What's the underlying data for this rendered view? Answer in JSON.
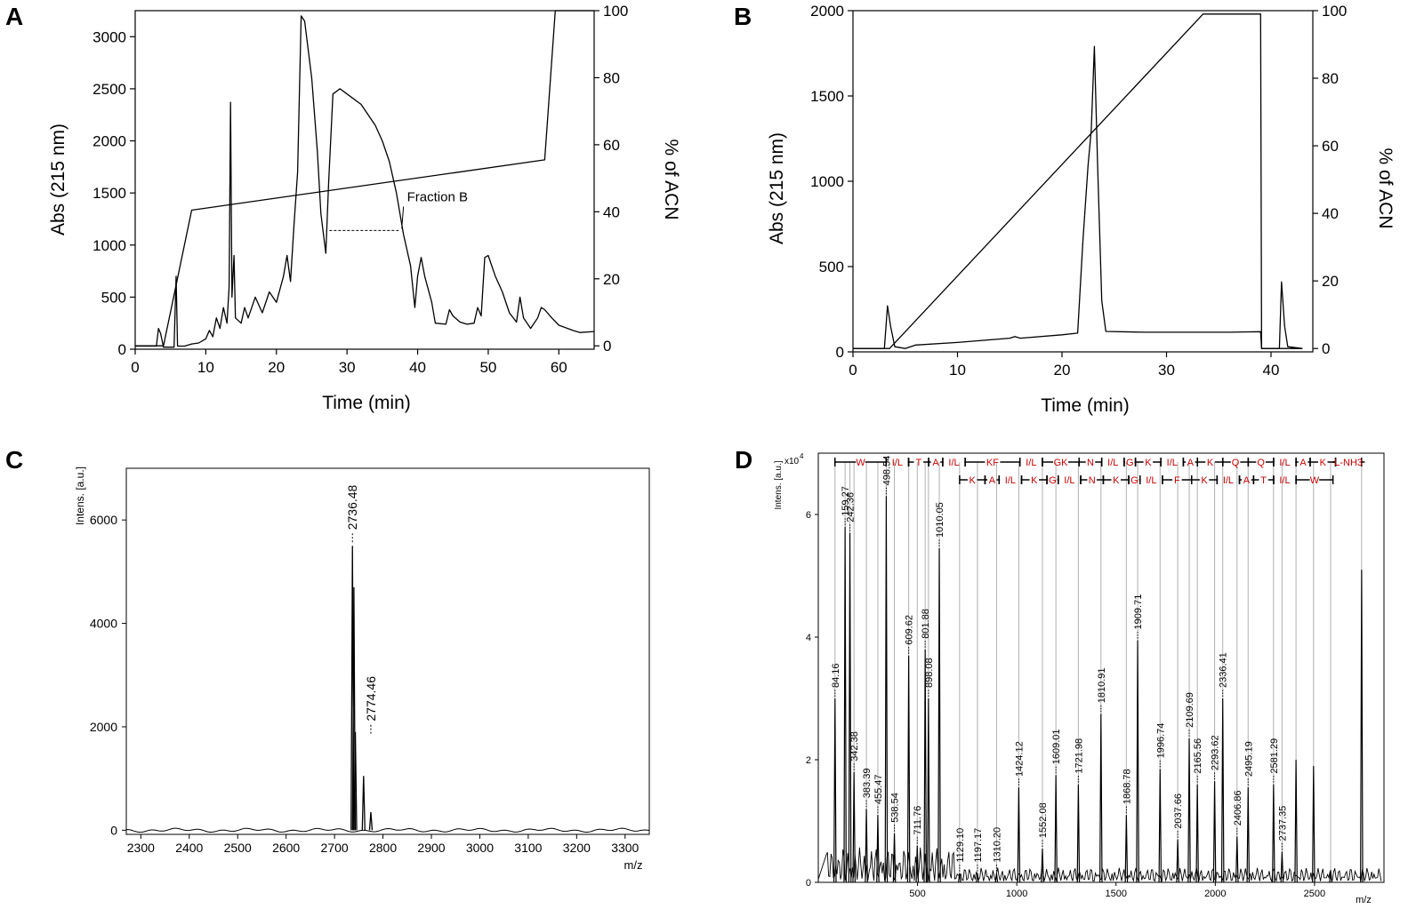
{
  "chart_data": [
    {
      "panel": "A",
      "type": "line",
      "xlabel": "Time (min)",
      "ylabel": "Abs (215 nm)",
      "y2label": "% of ACN",
      "xlim": [
        0,
        65
      ],
      "ylim": [
        0,
        3250
      ],
      "y2lim": [
        -1,
        100
      ],
      "xticks": [
        0,
        10,
        20,
        30,
        40,
        50,
        60
      ],
      "yticks": [
        0,
        500,
        1000,
        1500,
        2000,
        2500,
        3000
      ],
      "y2ticks": [
        0,
        20,
        40,
        60,
        80,
        100
      ],
      "annotation": {
        "text": "Fraction B",
        "x1": 27.5,
        "x2": 37.5,
        "y": 1140,
        "label_x": 38.5,
        "label_y": 1420
      },
      "series": [
        {
          "name": "Abs (215 nm)",
          "axis": "left",
          "points": [
            [
              0,
              30
            ],
            [
              3,
              30
            ],
            [
              3.3,
              200
            ],
            [
              3.6,
              150
            ],
            [
              4,
              20
            ],
            [
              5.5,
              20
            ],
            [
              5.8,
              700
            ],
            [
              6,
              30
            ],
            [
              7,
              30
            ],
            [
              8,
              50
            ],
            [
              9,
              60
            ],
            [
              10,
              100
            ],
            [
              10.5,
              180
            ],
            [
              11,
              120
            ],
            [
              11.5,
              300
            ],
            [
              12,
              200
            ],
            [
              12.5,
              400
            ],
            [
              13,
              250
            ],
            [
              13.3,
              600
            ],
            [
              13.5,
              2370
            ],
            [
              13.7,
              500
            ],
            [
              14,
              900
            ],
            [
              14.2,
              300
            ],
            [
              15,
              250
            ],
            [
              15.5,
              400
            ],
            [
              16,
              300
            ],
            [
              17,
              500
            ],
            [
              18,
              350
            ],
            [
              19,
              550
            ],
            [
              20,
              450
            ],
            [
              21,
              700
            ],
            [
              21.5,
              900
            ],
            [
              22,
              650
            ],
            [
              22.5,
              1200
            ],
            [
              23,
              1700
            ],
            [
              23.5,
              3200
            ],
            [
              24,
              3150
            ],
            [
              25,
              2600
            ],
            [
              25.8,
              1900
            ],
            [
              26.3,
              1300
            ],
            [
              27,
              920
            ],
            [
              27.4,
              1600
            ],
            [
              28,
              2450
            ],
            [
              29,
              2500
            ],
            [
              30,
              2450
            ],
            [
              32,
              2350
            ],
            [
              34,
              2150
            ],
            [
              35,
              2000
            ],
            [
              36,
              1800
            ],
            [
              37,
              1500
            ],
            [
              38,
              1100
            ],
            [
              39,
              800
            ],
            [
              39.6,
              400
            ],
            [
              40,
              700
            ],
            [
              40.5,
              880
            ],
            [
              41,
              700
            ],
            [
              42,
              450
            ],
            [
              42.5,
              250
            ],
            [
              44,
              240
            ],
            [
              44.5,
              380
            ],
            [
              45,
              320
            ],
            [
              46,
              260
            ],
            [
              47,
              240
            ],
            [
              48,
              250
            ],
            [
              48.5,
              400
            ],
            [
              49,
              320
            ],
            [
              49.5,
              880
            ],
            [
              50,
              900
            ],
            [
              51,
              700
            ],
            [
              52,
              550
            ],
            [
              53,
              350
            ],
            [
              54,
              260
            ],
            [
              54.5,
              500
            ],
            [
              55,
              300
            ],
            [
              56,
              200
            ],
            [
              57,
              300
            ],
            [
              57.5,
              400
            ],
            [
              58,
              380
            ],
            [
              59,
              300
            ],
            [
              60,
              230
            ],
            [
              62,
              180
            ],
            [
              63,
              160
            ],
            [
              65,
              170
            ]
          ]
        },
        {
          "name": "% of ACN",
          "axis": "right",
          "points": [
            [
              0,
              0
            ],
            [
              4,
              0
            ],
            [
              8,
              40.5
            ],
            [
              58,
              55.5
            ],
            [
              59.5,
              100
            ],
            [
              65,
              100
            ]
          ]
        }
      ]
    },
    {
      "panel": "B",
      "type": "line",
      "xlabel": "Time (min)",
      "ylabel": "Abs (215 nm)",
      "y2label": "% of ACN",
      "xlim": [
        0,
        44
      ],
      "ylim": [
        0,
        2000
      ],
      "y2lim": [
        -1,
        100
      ],
      "xticks": [
        0,
        10,
        20,
        30,
        40
      ],
      "yticks": [
        0,
        500,
        1000,
        1500,
        2000
      ],
      "y2ticks": [
        0,
        20,
        40,
        60,
        80,
        100
      ],
      "series": [
        {
          "name": "Abs (215 nm)",
          "axis": "left",
          "points": [
            [
              0,
              20
            ],
            [
              3,
              20
            ],
            [
              3.3,
              270
            ],
            [
              3.6,
              150
            ],
            [
              4,
              30
            ],
            [
              5,
              20
            ],
            [
              6,
              40
            ],
            [
              10,
              55
            ],
            [
              15,
              80
            ],
            [
              15.5,
              90
            ],
            [
              16,
              80
            ],
            [
              20,
              100
            ],
            [
              21.5,
              110
            ],
            [
              22,
              650
            ],
            [
              22.5,
              1100
            ],
            [
              22.8,
              1300
            ],
            [
              23.1,
              1790
            ],
            [
              23.4,
              1100
            ],
            [
              23.8,
              300
            ],
            [
              24.2,
              120
            ],
            [
              28,
              115
            ],
            [
              36,
              115
            ],
            [
              39,
              118
            ],
            [
              39.1,
              20
            ],
            [
              40.8,
              20
            ],
            [
              41,
              410
            ],
            [
              41.3,
              150
            ],
            [
              41.6,
              30
            ],
            [
              43,
              20
            ]
          ]
        },
        {
          "name": "% of ACN",
          "axis": "right",
          "points": [
            [
              0,
              0
            ],
            [
              3.5,
              0
            ],
            [
              33.5,
              99
            ],
            [
              39,
              99
            ],
            [
              39.1,
              0
            ],
            [
              43,
              0
            ]
          ]
        }
      ]
    },
    {
      "panel": "C",
      "type": "line",
      "xlabel": "m/z",
      "ylabel": "Intens. [a.u.]",
      "xlim": [
        2270,
        3350
      ],
      "ylim": [
        -80,
        7000
      ],
      "xticks": [
        2300,
        2400,
        2500,
        2600,
        2700,
        2800,
        2900,
        3000,
        3100,
        3200,
        3300
      ],
      "yticks": [
        0,
        2000,
        4000,
        6000
      ],
      "peaks": [
        [
          2737,
          5500
        ],
        [
          2740,
          4700
        ],
        [
          2743,
          1900
        ],
        [
          2760,
          1050
        ],
        [
          2775,
          350
        ]
      ],
      "peak_labels": [
        {
          "text": "2736.48",
          "x": 2737,
          "y": 5500
        },
        {
          "text": "2774.46",
          "x": 2775,
          "y": 1800
        }
      ]
    },
    {
      "panel": "D",
      "type": "line",
      "xlabel": "m/z",
      "ylabel": "Intens. [a.u.]",
      "yscale_label": "x10",
      "yscale_exponent": "4",
      "xlim": [
        0,
        2850
      ],
      "ylim": [
        0,
        7
      ],
      "xticks": [
        500,
        1000,
        1500,
        2000,
        2500
      ],
      "yticks": [
        0,
        2,
        4,
        6
      ],
      "peaks": [
        [
          84.16,
          3.0
        ],
        [
          135,
          5.8
        ],
        [
          159.27,
          5.7
        ],
        [
          180,
          1.8
        ],
        [
          242.36,
          1.2
        ],
        [
          300,
          1.1
        ],
        [
          342.38,
          6.3
        ],
        [
          383.39,
          0.8
        ],
        [
          455.47,
          3.7
        ],
        [
          498.54,
          0.6
        ],
        [
          538.54,
          3.8
        ],
        [
          555,
          3.0
        ],
        [
          609.62,
          5.45
        ],
        [
          711.76,
          0.15
        ],
        [
          801.88,
          0.15
        ],
        [
          898.08,
          0.15
        ],
        [
          1010.05,
          1.55
        ],
        [
          1129.1,
          0.55
        ],
        [
          1197.17,
          1.75
        ],
        [
          1310.2,
          1.6
        ],
        [
          1424.12,
          2.75
        ],
        [
          1552.08,
          1.1
        ],
        [
          1609.01,
          3.95
        ],
        [
          1721.98,
          1.85
        ],
        [
          1810.91,
          0.7
        ],
        [
          1868.78,
          2.35
        ],
        [
          1909.71,
          1.6
        ],
        [
          1996.74,
          1.65
        ],
        [
          2037.66,
          3.0
        ],
        [
          2109.69,
          0.75
        ],
        [
          2165.56,
          1.55
        ],
        [
          2293.62,
          1.6
        ],
        [
          2336.41,
          0.5
        ],
        [
          2406.86,
          2.0
        ],
        [
          2495.19,
          1.9
        ],
        [
          2581.29,
          0.2
        ],
        [
          2737.35,
          5.1
        ]
      ],
      "peak_labels": [
        "84.16",
        "159.27",
        "242.36",
        "342.38",
        "383.39",
        "455.47",
        "498.54",
        "538.54",
        "609.62",
        "711.76",
        "801.88",
        "898.08",
        "1010.05",
        "1129.10",
        "1197.17",
        "1310.20",
        "1424.12",
        "1552.08",
        "1609.01",
        "1721.98",
        "1810.91",
        "1868.78",
        "1909.71",
        "1996.74",
        "2037.66",
        "2109.69",
        "2165.56",
        "2293.62",
        "2336.41",
        "2406.86",
        "2495.19",
        "2581.29",
        "2737.35"
      ],
      "sequence_top": [
        {
          "text": "W",
          "x1": 84,
          "x2": 342
        },
        {
          "text": "I/L",
          "x1": 342,
          "x2": 455
        },
        {
          "text": "T",
          "x1": 455,
          "x2": 556
        },
        {
          "text": "A",
          "x1": 556,
          "x2": 627
        },
        {
          "text": "I/L",
          "x1": 627,
          "x2": 740
        },
        {
          "text": "KF",
          "x1": 740,
          "x2": 1016
        },
        {
          "text": "I/L",
          "x1": 1016,
          "x2": 1129
        },
        {
          "text": "GK",
          "x1": 1129,
          "x2": 1314
        },
        {
          "text": "N",
          "x1": 1314,
          "x2": 1428
        },
        {
          "text": "I/L",
          "x1": 1428,
          "x2": 1541
        },
        {
          "text": "G",
          "x1": 1541,
          "x2": 1598
        },
        {
          "text": "K",
          "x1": 1598,
          "x2": 1726
        },
        {
          "text": "I/L",
          "x1": 1726,
          "x2": 1839
        },
        {
          "text": "A",
          "x1": 1839,
          "x2": 1910
        },
        {
          "text": "K",
          "x1": 1910,
          "x2": 2038
        },
        {
          "text": "Q",
          "x1": 2038,
          "x2": 2166
        },
        {
          "text": "Q",
          "x1": 2166,
          "x2": 2294
        },
        {
          "text": "I/L",
          "x1": 2294,
          "x2": 2407
        },
        {
          "text": "A",
          "x1": 2407,
          "x2": 2478
        },
        {
          "text": "K",
          "x1": 2478,
          "x2": 2606
        },
        {
          "text": "L-NH3",
          "x1": 2606,
          "x2": 2737
        }
      ],
      "sequence_bottom": [
        {
          "text": "K",
          "x1": 712,
          "x2": 840
        },
        {
          "text": "A",
          "x1": 840,
          "x2": 911
        },
        {
          "text": "I/L",
          "x1": 911,
          "x2": 1024
        },
        {
          "text": "K",
          "x1": 1024,
          "x2": 1152
        },
        {
          "text": "G",
          "x1": 1152,
          "x2": 1209
        },
        {
          "text": "I/L",
          "x1": 1209,
          "x2": 1322
        },
        {
          "text": "N",
          "x1": 1322,
          "x2": 1436
        },
        {
          "text": "K",
          "x1": 1436,
          "x2": 1564
        },
        {
          "text": "G",
          "x1": 1564,
          "x2": 1621
        },
        {
          "text": "I/L",
          "x1": 1621,
          "x2": 1734
        },
        {
          "text": "F",
          "x1": 1734,
          "x2": 1881
        },
        {
          "text": "K",
          "x1": 1881,
          "x2": 2009
        },
        {
          "text": "I/L",
          "x1": 2009,
          "x2": 2122
        },
        {
          "text": "A",
          "x1": 2122,
          "x2": 2193
        },
        {
          "text": "T",
          "x1": 2193,
          "x2": 2294
        },
        {
          "text": "I/L",
          "x1": 2294,
          "x2": 2407
        },
        {
          "text": "W",
          "x1": 2407,
          "x2": 2593
        }
      ],
      "sequence_color": "#cc0000"
    }
  ]
}
